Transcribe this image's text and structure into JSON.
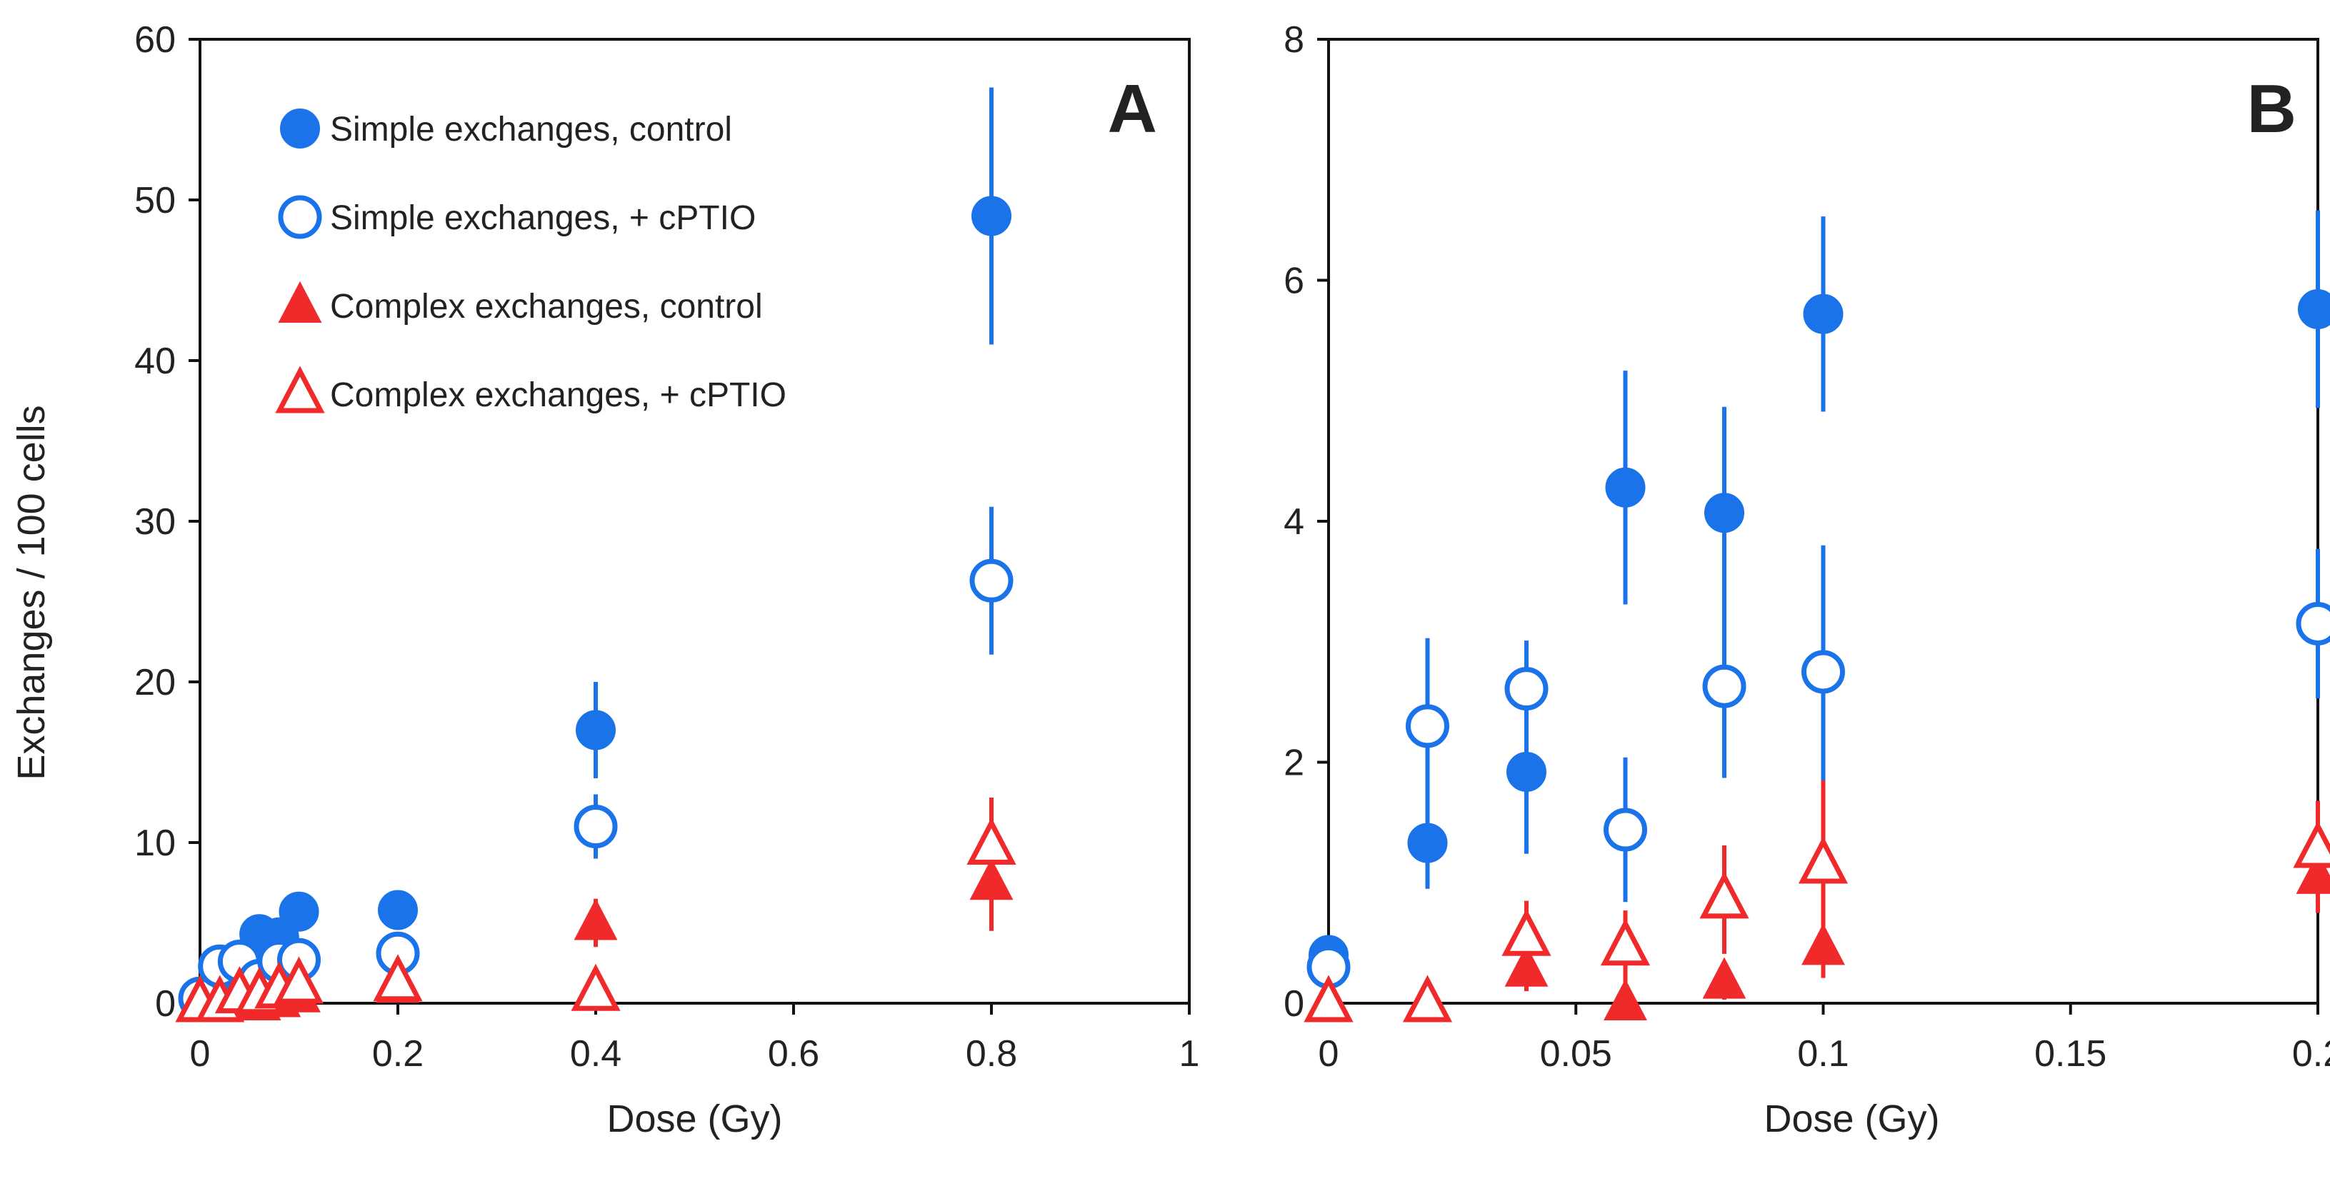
{
  "colors": {
    "blue": "#1a73e8",
    "red": "#f02a2a",
    "axis": "#111111"
  },
  "ylabel": "Exchanges / 100 cells",
  "legend": [
    {
      "label": "Simple exchanges,  control",
      "marker": "circle-filled",
      "color": "#1a73e8"
    },
    {
      "label": "Simple exchanges,  + cPTIO",
      "marker": "circle-open",
      "color": "#1a73e8"
    },
    {
      "label": "Complex exchanges, control",
      "marker": "triangle-filled",
      "color": "#f02a2a"
    },
    {
      "label": "Complex exchanges, + cPTIO",
      "marker": "triangle-open",
      "color": "#f02a2a"
    }
  ],
  "chart_data": [
    {
      "type": "scatter",
      "panel": "A",
      "xlabel": "Dose (Gy)",
      "ylabel": "Exchanges / 100 cells",
      "xlim": [
        0,
        1
      ],
      "ylim": [
        0,
        60
      ],
      "xticks": [
        "0",
        "0.2",
        "0.4",
        "0.6",
        "0.8",
        "1"
      ],
      "xtick_values": [
        0,
        0.2,
        0.4,
        0.6,
        0.8,
        1
      ],
      "yticks": [
        "0",
        "10",
        "20",
        "30",
        "40",
        "50",
        "60"
      ],
      "ytick_values": [
        0,
        10,
        20,
        30,
        40,
        50,
        60
      ],
      "series": [
        {
          "name": "Simple exchanges,  control",
          "marker": "circle-filled",
          "color": "#1a73e8",
          "x": [
            0,
            0.02,
            0.04,
            0.06,
            0.08,
            0.1,
            0.2,
            0.4,
            0.8
          ],
          "y": [
            0.4,
            1.3,
            1.9,
            4.3,
            4.1,
            5.7,
            5.8,
            17,
            49
          ],
          "err_low": [
            0.2,
            0.3,
            0.5,
            0.9,
            0.8,
            0.7,
            0.8,
            3,
            8
          ],
          "err_high": [
            0.2,
            0.3,
            0.5,
            0.9,
            0.8,
            0.7,
            0.8,
            3,
            8
          ]
        },
        {
          "name": "Simple exchanges,  + cPTIO",
          "marker": "circle-open",
          "color": "#1a73e8",
          "x": [
            0,
            0.02,
            0.04,
            0.06,
            0.08,
            0.1,
            0.2,
            0.4,
            0.8
          ],
          "y": [
            0.3,
            2.3,
            2.6,
            1.4,
            2.6,
            2.7,
            3.1,
            11,
            26.3
          ],
          "err_low": [
            0.2,
            0.5,
            0.4,
            0.6,
            0.8,
            0.9,
            0.6,
            2,
            4.6
          ],
          "err_high": [
            0.2,
            0.5,
            0.4,
            0.6,
            0.8,
            0.9,
            0.6,
            2,
            4.6
          ]
        },
        {
          "name": "Complex exchanges, control",
          "marker": "triangle-filled",
          "color": "#f02a2a",
          "x": [
            0,
            0.02,
            0.04,
            0.06,
            0.08,
            0.1,
            0.2,
            0.4,
            0.8
          ],
          "y": [
            0,
            0,
            0.3,
            0,
            0.2,
            0.5,
            1.1,
            5,
            7.5
          ],
          "err_low": [
            0,
            0,
            0.2,
            0,
            0.2,
            0.3,
            0.3,
            1.5,
            3
          ],
          "err_high": [
            0,
            0,
            0.2,
            0,
            0.2,
            0.3,
            0.3,
            1.5,
            3
          ]
        },
        {
          "name": "Complex exchanges, + cPTIO",
          "marker": "triangle-open",
          "color": "#f02a2a",
          "x": [
            0,
            0.02,
            0.04,
            0.06,
            0.08,
            0.1,
            0.2,
            0.4,
            0.8
          ],
          "y": [
            0,
            0,
            0.55,
            0.5,
            0.85,
            1.15,
            1.3,
            0.7,
            9.8
          ],
          "err_low": [
            0,
            0,
            0.3,
            0.3,
            0.5,
            0.7,
            0.4,
            0.5,
            3
          ],
          "err_high": [
            0,
            0,
            0.3,
            0.3,
            0.5,
            0.7,
            0.4,
            0.5,
            3
          ]
        }
      ]
    },
    {
      "type": "scatter",
      "panel": "B",
      "xlabel": "Dose (Gy)",
      "ylabel": "",
      "xlim": [
        0,
        0.2
      ],
      "ylim": [
        0,
        8
      ],
      "xticks": [
        "0",
        "0.05",
        "0.1",
        "0.15",
        "0.2"
      ],
      "xtick_values": [
        0,
        0.05,
        0.1,
        0.15,
        0.2
      ],
      "yticks": [
        "0",
        "2",
        "4",
        "6",
        "8"
      ],
      "ytick_values": [
        0,
        2,
        4,
        6,
        8
      ],
      "series": [
        {
          "name": "Simple exchanges,  control",
          "marker": "circle-filled",
          "color": "#1a73e8",
          "x": [
            0,
            0.02,
            0.04,
            0.06,
            0.08,
            0.1,
            0.2
          ],
          "y": [
            0.4,
            1.33,
            1.92,
            4.28,
            4.07,
            5.72,
            5.76
          ],
          "err_low": [
            0.15,
            0.38,
            0.68,
            0.97,
            0.88,
            0.81,
            0.82
          ],
          "err_high": [
            0.15,
            0.38,
            0.68,
            0.97,
            0.88,
            0.81,
            0.82
          ]
        },
        {
          "name": "Simple exchanges,  + cPTIO",
          "marker": "circle-open",
          "color": "#1a73e8",
          "x": [
            0,
            0.02,
            0.04,
            0.06,
            0.08,
            0.1,
            0.2
          ],
          "y": [
            0.3,
            2.3,
            2.61,
            1.44,
            2.63,
            2.75,
            3.15
          ],
          "err_low": [
            0.12,
            0.73,
            0.4,
            0.6,
            0.76,
            1.05,
            0.62
          ],
          "err_high": [
            0.12,
            0.73,
            0.4,
            0.6,
            0.76,
            1.05,
            0.62
          ]
        },
        {
          "name": "Complex exchanges, control",
          "marker": "triangle-filled",
          "color": "#f02a2a",
          "x": [
            0,
            0.02,
            0.04,
            0.06,
            0.08,
            0.1,
            0.2
          ],
          "y": [
            0,
            0,
            0.28,
            0,
            0.18,
            0.46,
            1.05
          ],
          "err_low": [
            0,
            0,
            0.18,
            0,
            0.15,
            0.25,
            0.3
          ],
          "err_high": [
            0,
            0,
            0.18,
            0,
            0.15,
            0.25,
            0.3
          ]
        },
        {
          "name": "Complex exchanges, + cPTIO",
          "marker": "triangle-open",
          "color": "#f02a2a",
          "x": [
            0,
            0.02,
            0.04,
            0.06,
            0.08,
            0.1,
            0.2
          ],
          "y": [
            0,
            0,
            0.55,
            0.47,
            0.86,
            1.15,
            1.28
          ],
          "err_low": [
            0,
            0,
            0.3,
            0.3,
            0.45,
            0.7,
            0.4
          ],
          "err_high": [
            0,
            0,
            0.3,
            0.3,
            0.45,
            0.7,
            0.4
          ]
        }
      ]
    }
  ]
}
